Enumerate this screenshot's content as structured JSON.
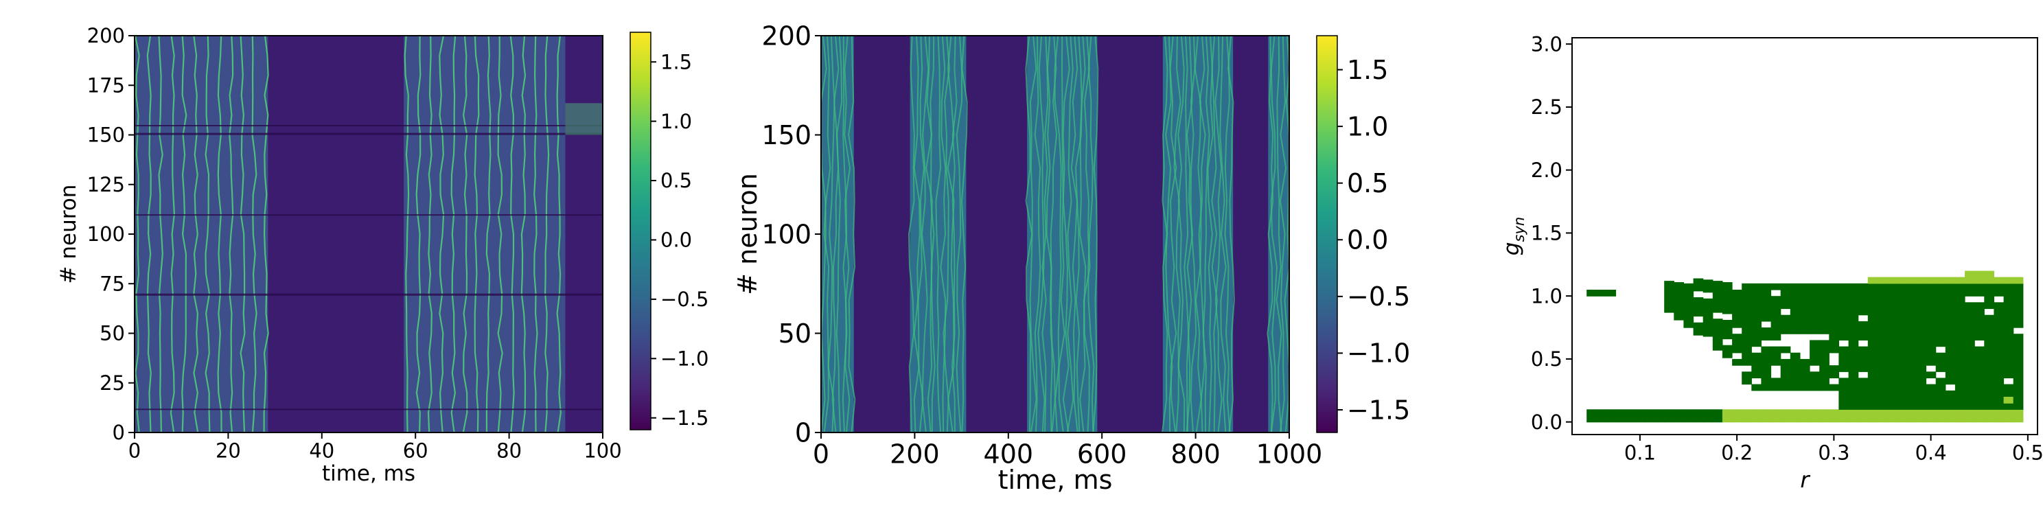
{
  "colorscale": [
    "#440154",
    "#482878",
    "#3e4989",
    "#31688e",
    "#26828e",
    "#1f9e89",
    "#35b779",
    "#6ece58",
    "#b5de2b",
    "#fde725"
  ],
  "chart_data": [
    {
      "type": "heatmap",
      "panel": "left",
      "xlabel": "time, ms",
      "ylabel": "# neuron",
      "xlim": [
        0,
        100
      ],
      "ylim": [
        0,
        200
      ],
      "xticks": [
        "0",
        "20",
        "40",
        "60",
        "80",
        "100"
      ],
      "yticks": [
        "0",
        "25",
        "50",
        "75",
        "100",
        "125",
        "150",
        "175",
        "200"
      ],
      "colorbar": {
        "range": [
          -1.6,
          1.75
        ],
        "ticks": [
          "−1.5",
          "−1.0",
          "−0.5",
          "0.0",
          "0.5",
          "1.0",
          "1.5"
        ]
      },
      "bursts_ms": [
        [
          0,
          28.5
        ],
        [
          57.5,
          92
        ]
      ],
      "spike_period_ms": 2.5
    },
    {
      "type": "heatmap",
      "panel": "middle",
      "xlabel": "time, ms",
      "ylabel": "# neuron",
      "xlim": [
        0,
        1000
      ],
      "ylim": [
        0,
        200
      ],
      "xticks": [
        "0",
        "200",
        "400",
        "600",
        "800",
        "1000"
      ],
      "yticks": [
        "0",
        "50",
        "100",
        "150",
        "200"
      ],
      "colorbar": {
        "range": [
          -1.7,
          1.8
        ],
        "ticks": [
          "−1.5",
          "−1.0",
          "−0.5",
          "0.0",
          "0.5",
          "1.0",
          "1.5"
        ]
      },
      "bursts_ms": [
        [
          0,
          70
        ],
        [
          190,
          310
        ],
        [
          440,
          590
        ],
        [
          730,
          880
        ],
        [
          955,
          1000
        ]
      ]
    },
    {
      "type": "heatmap",
      "panel": "right",
      "xlabel": "r",
      "ylabel": "g",
      "ylabel_sub": "syn",
      "xlim": [
        0.03,
        0.51
      ],
      "ylim": [
        -0.1,
        3.05
      ],
      "xticks": [
        0.1,
        0.2,
        0.3,
        0.4,
        0.5
      ],
      "yticks": [
        0.0,
        0.5,
        1.0,
        1.5,
        2.0,
        2.5,
        3.0
      ],
      "colors": {
        "dark": "#006400",
        "light": "#9acd32"
      }
    }
  ]
}
